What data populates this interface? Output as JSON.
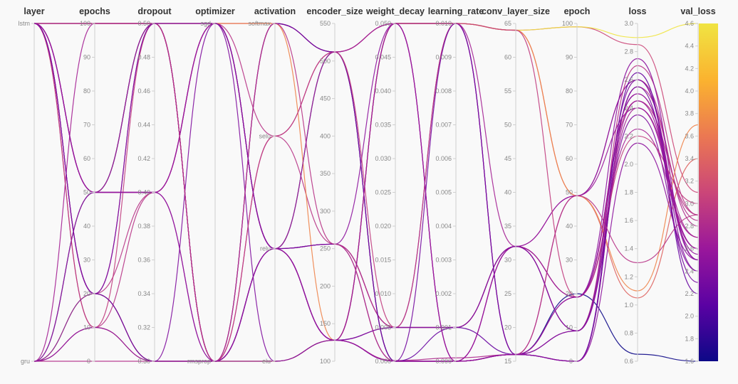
{
  "chart_data": {
    "type": "parallel_coordinates",
    "axes": [
      {
        "key": "layer",
        "label": "layer",
        "kind": "categorical",
        "categories": [
          "gru",
          "lstm"
        ]
      },
      {
        "key": "epochs",
        "label": "epochs",
        "kind": "numeric",
        "min": 0,
        "max": 100,
        "ticks": [
          0,
          10,
          20,
          30,
          40,
          50,
          60,
          70,
          80,
          90,
          100
        ]
      },
      {
        "key": "dropout",
        "label": "dropout",
        "kind": "numeric",
        "min": 0.3,
        "max": 0.5,
        "ticks": [
          0.3,
          0.32,
          0.34,
          0.36,
          0.38,
          0.4,
          0.42,
          0.44,
          0.46,
          0.48,
          0.5
        ],
        "tick_labels": [
          "0.30",
          "0.32",
          "0.34",
          "0.36",
          "0.38",
          "0.40",
          "0.42",
          "0.44",
          "0.46",
          "0.48",
          "0.50"
        ]
      },
      {
        "key": "optimizer",
        "label": "optimizer",
        "kind": "categorical",
        "categories": [
          "rmsprop",
          "sgd"
        ]
      },
      {
        "key": "activation",
        "label": "activation",
        "kind": "categorical",
        "categories": [
          "elu",
          "relu",
          "selu",
          "softmax"
        ]
      },
      {
        "key": "encoder_size",
        "label": "encoder_size",
        "kind": "numeric",
        "min": 100,
        "max": 550,
        "ticks": [
          100,
          150,
          200,
          250,
          300,
          350,
          400,
          450,
          500,
          550
        ]
      },
      {
        "key": "weight_decay",
        "label": "weight_decay",
        "kind": "numeric",
        "min": 0,
        "max": 0.05,
        "ticks": [
          0,
          0.005,
          0.01,
          0.015,
          0.02,
          0.025,
          0.03,
          0.035,
          0.04,
          0.045,
          0.05
        ],
        "tick_labels": [
          "0.000",
          "0.005",
          "0.010",
          "0.015",
          "0.020",
          "0.025",
          "0.030",
          "0.035",
          "0.040",
          "0.045",
          "0.050"
        ]
      },
      {
        "key": "learning_rate",
        "label": "learning_rate",
        "kind": "numeric",
        "min": 0,
        "max": 0.01,
        "ticks": [
          0,
          0.001,
          0.002,
          0.003,
          0.004,
          0.005,
          0.006,
          0.007,
          0.008,
          0.009,
          0.01
        ],
        "tick_labels": [
          "0.000",
          "0.001",
          "0.002",
          "0.003",
          "0.004",
          "0.005",
          "0.006",
          "0.007",
          "0.008",
          "0.009",
          "0.010"
        ]
      },
      {
        "key": "conv_layer_size",
        "label": "conv_layer_size",
        "kind": "numeric",
        "min": 15,
        "max": 65,
        "ticks": [
          15,
          20,
          25,
          30,
          35,
          40,
          45,
          50,
          55,
          60,
          65
        ]
      },
      {
        "key": "epoch",
        "label": "epoch",
        "kind": "numeric",
        "min": 0,
        "max": 100,
        "ticks": [
          0,
          10,
          20,
          30,
          40,
          50,
          60,
          70,
          80,
          90,
          100
        ]
      },
      {
        "key": "loss",
        "label": "loss",
        "kind": "numeric",
        "min": 0.6,
        "max": 3.0,
        "ticks": [
          0.6,
          0.8,
          1.0,
          1.2,
          1.4,
          1.6,
          1.8,
          2.0,
          2.2,
          2.4,
          2.6,
          2.8,
          3.0
        ],
        "tick_labels": [
          "0.6",
          "0.8",
          "1.0",
          "1.2",
          "1.4",
          "1.6",
          "1.8",
          "2.0",
          "2.2",
          "2.4",
          "2.6",
          "2.8",
          "3.0"
        ]
      },
      {
        "key": "val_loss",
        "label": "val_loss",
        "kind": "numeric",
        "min": 1.6,
        "max": 4.6,
        "ticks": [
          1.6,
          1.8,
          2.0,
          2.2,
          2.4,
          2.6,
          2.8,
          3.0,
          3.2,
          3.4,
          3.6,
          3.8,
          4.0,
          4.2,
          4.4,
          4.6
        ],
        "tick_labels": [
          "1.6",
          "1.8",
          "2.0",
          "2.2",
          "2.4",
          "2.6",
          "2.8",
          "3.0",
          "3.2",
          "3.4",
          "3.6",
          "3.8",
          "4.0",
          "4.2",
          "4.4",
          "4.6"
        ]
      }
    ],
    "colorscale": {
      "by": "val_loss",
      "min": 1.6,
      "max": 4.6,
      "stops": [
        "#0d0887",
        "#5b02a3",
        "#9a179b",
        "#cb4678",
        "#eb7852",
        "#fbb32f",
        "#f0e442"
      ]
    },
    "runs": [
      {
        "layer": "lstm",
        "epochs": 100,
        "dropout": 0.5,
        "optimizer": "sgd",
        "activation": "softmax",
        "encoder_size": 512,
        "weight_decay": 0.05,
        "learning_rate": 0.01,
        "conv_layer_size": 64,
        "epoch": 99,
        "loss": 2.85,
        "val_loss": 3.1
      },
      {
        "layer": "lstm",
        "epochs": 50,
        "dropout": 0.5,
        "optimizer": "rmsprop",
        "activation": "relu",
        "encoder_size": 128,
        "weight_decay": 0.0001,
        "learning_rate": 0.0001,
        "conv_layer_size": 16,
        "epoch": 49,
        "loss": 2.6,
        "val_loss": 2.8
      },
      {
        "layer": "lstm",
        "epochs": 20,
        "dropout": 0.4,
        "optimizer": "sgd",
        "activation": "selu",
        "encoder_size": 256,
        "weight_decay": 0.005,
        "learning_rate": 0.001,
        "conv_layer_size": 32,
        "epoch": 19,
        "loss": 2.45,
        "val_loss": 2.9
      },
      {
        "layer": "gru",
        "epochs": 50,
        "dropout": 0.5,
        "optimizer": "rmsprop",
        "activation": "relu",
        "encoder_size": 512,
        "weight_decay": 0.0,
        "learning_rate": 0.0,
        "conv_layer_size": 16,
        "epoch": 20,
        "loss": 0.65,
        "val_loss": 1.6
      },
      {
        "layer": "lstm",
        "epochs": 10,
        "dropout": 0.3,
        "optimizer": "rmsprop",
        "activation": "elu",
        "encoder_size": 128,
        "weight_decay": 0.05,
        "learning_rate": 0.01,
        "conv_layer_size": 64,
        "epoch": 49,
        "loss": 1.05,
        "val_loss": 3.4
      },
      {
        "layer": "gru",
        "epochs": 20,
        "dropout": 0.3,
        "optimizer": "rmsprop",
        "activation": "elu",
        "encoder_size": 128,
        "weight_decay": 0.05,
        "learning_rate": 0.01,
        "conv_layer_size": 64,
        "epoch": 99,
        "loss": 2.9,
        "val_loss": 4.6
      },
      {
        "layer": "lstm",
        "epochs": 50,
        "dropout": 0.4,
        "optimizer": "sgd",
        "activation": "relu",
        "encoder_size": 256,
        "weight_decay": 0.005,
        "learning_rate": 0.001,
        "conv_layer_size": 32,
        "epoch": 49,
        "loss": 2.6,
        "val_loss": 2.5
      },
      {
        "layer": "gru",
        "epochs": 100,
        "dropout": 0.5,
        "optimizer": "rmsprop",
        "activation": "softmax",
        "encoder_size": 512,
        "weight_decay": 0.05,
        "learning_rate": 0.01,
        "conv_layer_size": 16,
        "epoch": 9,
        "loss": 2.4,
        "val_loss": 2.7
      },
      {
        "layer": "lstm",
        "epochs": 20,
        "dropout": 0.5,
        "optimizer": "rmsprop",
        "activation": "relu",
        "encoder_size": 128,
        "weight_decay": 0.0,
        "learning_rate": 0.0,
        "conv_layer_size": 16,
        "epoch": 19,
        "loss": 2.5,
        "val_loss": 2.6
      },
      {
        "layer": "lstm",
        "epochs": 10,
        "dropout": 0.4,
        "optimizer": "sgd",
        "activation": "relu",
        "encoder_size": 256,
        "weight_decay": 0.005,
        "learning_rate": 0.001,
        "conv_layer_size": 32,
        "epoch": 9,
        "loss": 2.7,
        "val_loss": 2.9
      },
      {
        "layer": "gru",
        "epochs": 0,
        "dropout": 0.3,
        "optimizer": "rmsprop",
        "activation": "selu",
        "encoder_size": 512,
        "weight_decay": 0.0,
        "learning_rate": 0.0,
        "conv_layer_size": 16,
        "epoch": 0,
        "loss": 2.55,
        "val_loss": 2.85
      },
      {
        "layer": "lstm",
        "epochs": 100,
        "dropout": 0.5,
        "optimizer": "sgd",
        "activation": "softmax",
        "encoder_size": 128,
        "weight_decay": 0.05,
        "learning_rate": 0.01,
        "conv_layer_size": 64,
        "epoch": 49,
        "loss": 1.1,
        "val_loss": 3.7
      },
      {
        "layer": "lstm",
        "epochs": 50,
        "dropout": 0.4,
        "optimizer": "rmsprop",
        "activation": "relu",
        "encoder_size": 256,
        "weight_decay": 0.05,
        "learning_rate": 0.0,
        "conv_layer_size": 32,
        "epoch": 19,
        "loss": 2.75,
        "val_loss": 2.5
      },
      {
        "layer": "gru",
        "epochs": 20,
        "dropout": 0.3,
        "optimizer": "sgd",
        "activation": "elu",
        "encoder_size": 128,
        "weight_decay": 0.005,
        "learning_rate": 0.01,
        "conv_layer_size": 16,
        "epoch": 9,
        "loss": 2.35,
        "val_loss": 2.4
      },
      {
        "layer": "lstm",
        "epochs": 100,
        "dropout": 0.5,
        "optimizer": "rmsprop",
        "activation": "softmax",
        "encoder_size": 512,
        "weight_decay": 0.0,
        "learning_rate": 0.001,
        "conv_layer_size": 16,
        "epoch": 0,
        "loss": 2.65,
        "val_loss": 2.2
      },
      {
        "layer": "lstm",
        "epochs": 50,
        "dropout": 0.4,
        "optimizer": "sgd",
        "activation": "relu",
        "encoder_size": 128,
        "weight_decay": 0.05,
        "learning_rate": 0.0,
        "conv_layer_size": 32,
        "epoch": 49,
        "loss": 2.4,
        "val_loss": 2.6
      },
      {
        "layer": "gru",
        "epochs": 10,
        "dropout": 0.5,
        "optimizer": "rmsprop",
        "activation": "selu",
        "encoder_size": 512,
        "weight_decay": 0.005,
        "learning_rate": 0.01,
        "conv_layer_size": 64,
        "epoch": 19,
        "loss": 2.2,
        "val_loss": 3.0
      },
      {
        "layer": "lstm",
        "epochs": 20,
        "dropout": 0.3,
        "optimizer": "rmsprop",
        "activation": "relu",
        "encoder_size": 256,
        "weight_decay": 0.0,
        "learning_rate": 0.01,
        "conv_layer_size": 16,
        "epoch": 0,
        "loss": 2.55,
        "val_loss": 2.3
      },
      {
        "layer": "gru",
        "epochs": 50,
        "dropout": 0.4,
        "optimizer": "sgd",
        "activation": "relu",
        "encoder_size": 128,
        "weight_decay": 0.05,
        "learning_rate": 0.0,
        "conv_layer_size": 32,
        "epoch": 9,
        "loss": 2.45,
        "val_loss": 2.6
      },
      {
        "layer": "lstm",
        "epochs": 100,
        "dropout": 0.5,
        "optimizer": "rmsprop",
        "activation": "softmax",
        "encoder_size": 256,
        "weight_decay": 0.0,
        "learning_rate": 0.0,
        "conv_layer_size": 16,
        "epoch": 49,
        "loss": 1.3,
        "val_loss": 2.9
      },
      {
        "layer": "lstm",
        "epochs": 50,
        "dropout": 0.5,
        "optimizer": "sgd",
        "activation": "relu",
        "encoder_size": 512,
        "weight_decay": 0.05,
        "learning_rate": 0.01,
        "conv_layer_size": 32,
        "epoch": 19,
        "loss": 2.25,
        "val_loss": 2.7
      },
      {
        "layer": "gru",
        "epochs": 10,
        "dropout": 0.3,
        "optimizer": "rmsprop",
        "activation": "elu",
        "encoder_size": 128,
        "weight_decay": 0.0,
        "learning_rate": 0.0,
        "conv_layer_size": 16,
        "epoch": 0,
        "loss": 2.15,
        "val_loss": 2.5
      },
      {
        "layer": "lstm",
        "epochs": 20,
        "dropout": 0.5,
        "optimizer": "sgd",
        "activation": "relu",
        "encoder_size": 128,
        "weight_decay": 0.005,
        "learning_rate": 0.001,
        "conv_layer_size": 32,
        "epoch": 9,
        "loss": 2.6,
        "val_loss": 2.4
      },
      {
        "layer": "lstm",
        "epochs": 50,
        "dropout": 0.4,
        "optimizer": "rmsprop",
        "activation": "relu",
        "encoder_size": 128,
        "weight_decay": 0.0,
        "learning_rate": 0.0,
        "conv_layer_size": 16,
        "epoch": 19,
        "loss": 2.5,
        "val_loss": 2.55
      }
    ]
  }
}
